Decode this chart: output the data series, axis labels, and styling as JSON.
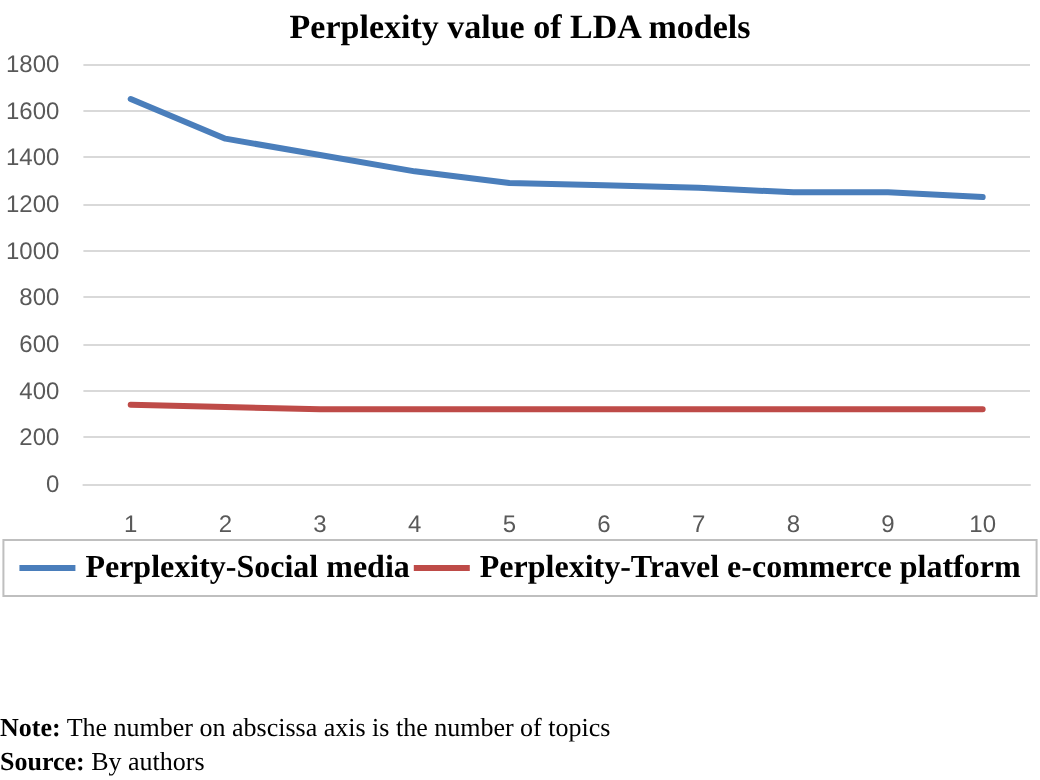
{
  "chart_data": {
    "type": "line",
    "title": "Perplexity value of LDA models",
    "categories": [
      "1",
      "2",
      "3",
      "4",
      "5",
      "6",
      "7",
      "8",
      "9",
      "10"
    ],
    "series": [
      {
        "name": "Perplexity-Social media",
        "color": "#4a7ebb",
        "values": [
          1650,
          1480,
          1410,
          1340,
          1290,
          1280,
          1270,
          1250,
          1250,
          1230
        ]
      },
      {
        "name": "Perplexity-Travel e-commerce platform",
        "color": "#be4b48",
        "values": [
          340,
          330,
          320,
          320,
          320,
          320,
          320,
          320,
          320,
          320
        ]
      }
    ],
    "ylim": [
      0,
      1800
    ],
    "yticks": [
      0,
      200,
      400,
      600,
      800,
      1000,
      1200,
      1400,
      1600,
      1800
    ],
    "grid": "y",
    "legend": "bottom",
    "marker": "none",
    "line_style": "solid",
    "annotations": [
      "Note: The number on abscissa axis is the number of topics",
      "Source: By authors"
    ]
  }
}
